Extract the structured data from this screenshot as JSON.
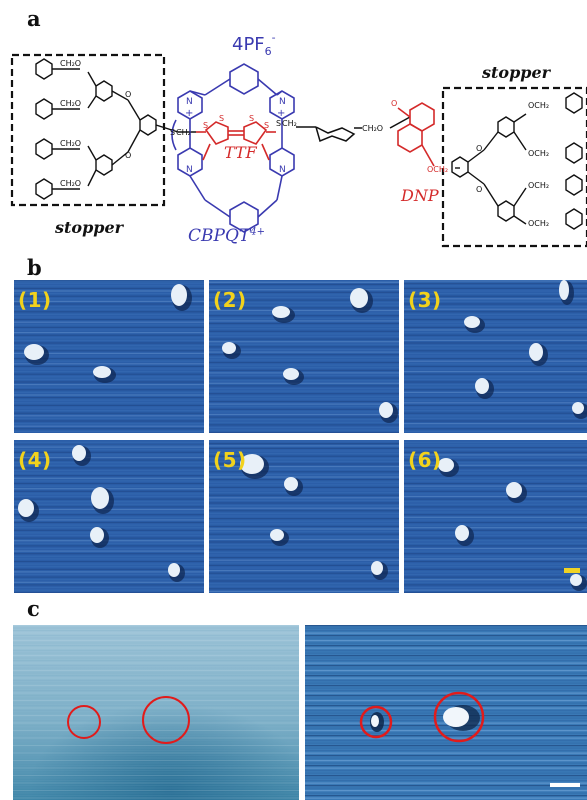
{
  "panel_labels": {
    "a": "a",
    "b": "b",
    "c": "c"
  },
  "molecule": {
    "counter_ion": "4PF",
    "counter_ion_sub": "6",
    "counter_ion_sup": "-",
    "left_stopper_label": "stopper",
    "right_stopper_label": "stopper",
    "ring_label": "CBPQT",
    "ring_label_sup": "4+",
    "ttf_label": "TTF",
    "dnp_label": "DNP",
    "group_labels": {
      "ch2o": "CH₂O",
      "o": "O",
      "s": "S",
      "och2": "OCH₂",
      "plus": "+"
    },
    "colors": {
      "ring": "#3a3ab0",
      "ttf": "#d42a2a",
      "dnp": "#d42a2a",
      "black": "#111111"
    }
  },
  "afm_frames": [
    {
      "label": "(1)"
    },
    {
      "label": "(2)"
    },
    {
      "label": "(3)"
    },
    {
      "label": "(4)"
    },
    {
      "label": "(5)"
    },
    {
      "label": "(6)"
    }
  ],
  "colors": {
    "afm_background": "#2b5ea8",
    "afm_spot": "#e8f0f8",
    "frame_label": "#f2d21c",
    "highlight_circle": "#e11b1b",
    "scale_bar_b": "#f0d324",
    "scale_bar_c": "#ffffff"
  }
}
